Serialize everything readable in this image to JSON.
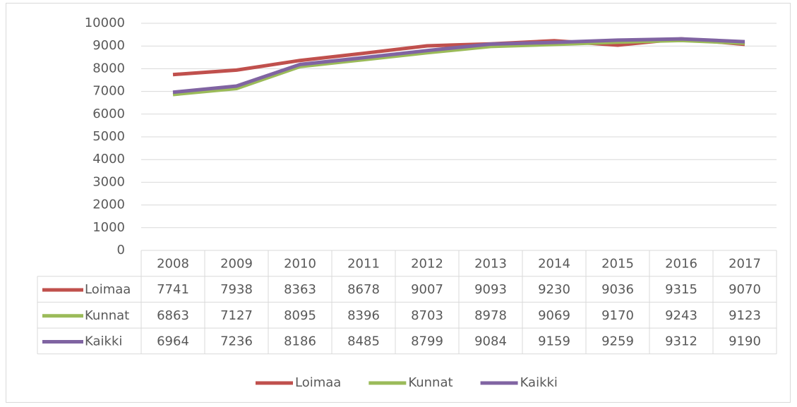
{
  "chart_data": {
    "type": "line",
    "categories": [
      "2008",
      "2009",
      "2010",
      "2011",
      "2012",
      "2013",
      "2014",
      "2015",
      "2016",
      "2017"
    ],
    "series": [
      {
        "name": "Loimaa",
        "color": "#c0504d",
        "values": [
          7741,
          7938,
          8363,
          8678,
          9007,
          9093,
          9230,
          9036,
          9315,
          9070
        ]
      },
      {
        "name": "Kunnat",
        "color": "#9bbb59",
        "values": [
          6863,
          7127,
          8095,
          8396,
          8703,
          8978,
          9069,
          9170,
          9243,
          9123
        ]
      },
      {
        "name": "Kaikki",
        "color": "#8064a2",
        "values": [
          6964,
          7236,
          8186,
          8485,
          8799,
          9084,
          9159,
          9259,
          9312,
          9190
        ]
      }
    ],
    "ylim": [
      0,
      10000
    ],
    "yticks": [
      0,
      1000,
      2000,
      3000,
      4000,
      5000,
      6000,
      7000,
      8000,
      9000,
      10000
    ],
    "grid": true,
    "data_table": true,
    "legend": "bottom"
  }
}
